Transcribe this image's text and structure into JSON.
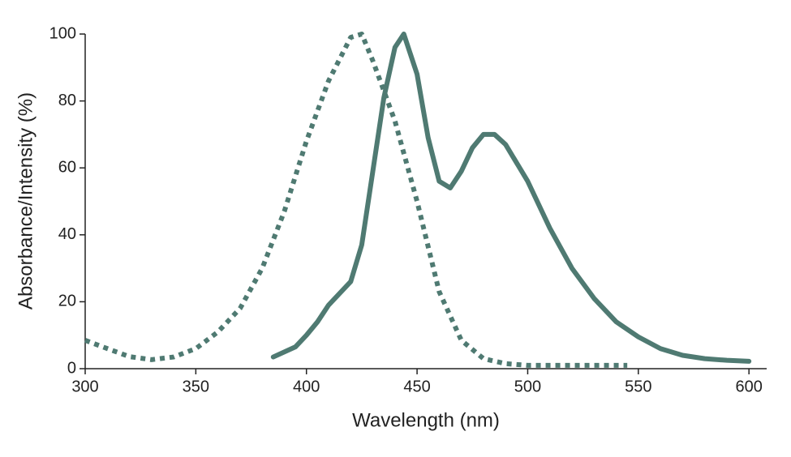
{
  "chart_data": {
    "type": "line",
    "xlabel": "Wavelength (nm)",
    "ylabel": "Absorbance/Intensity (%)",
    "xlim": [
      300,
      608
    ],
    "ylim": [
      0,
      100
    ],
    "xticks": [
      300,
      350,
      400,
      450,
      500,
      550,
      600
    ],
    "yticks": [
      0,
      20,
      40,
      60,
      80,
      100
    ],
    "grid": false,
    "series": [
      {
        "color": "#4f7a72",
        "style": "dotted",
        "x": [
          300,
          310,
          320,
          330,
          340,
          350,
          360,
          370,
          380,
          390,
          400,
          410,
          420,
          425,
          430,
          440,
          450,
          460,
          470,
          480,
          490,
          500,
          520,
          545
        ],
        "values": [
          8.5,
          6,
          3.6,
          2.7,
          3.5,
          6,
          11,
          18,
          30,
          47,
          68,
          86,
          99,
          100,
          92,
          74,
          50,
          23,
          8.5,
          3,
          1.5,
          1,
          1,
          1
        ]
      },
      {
        "color": "#4f7a72",
        "style": "solid",
        "x": [
          385,
          395,
          400,
          405,
          410,
          420,
          425,
          430,
          435,
          440,
          444,
          450,
          455,
          460,
          465,
          470,
          475,
          480,
          485,
          490,
          500,
          510,
          520,
          530,
          540,
          550,
          560,
          570,
          580,
          590,
          600
        ],
        "values": [
          3.5,
          6.5,
          10,
          14,
          19,
          26,
          37,
          59,
          81,
          96,
          100,
          88,
          69,
          56,
          54,
          59,
          66,
          70,
          70,
          67,
          56,
          42,
          30,
          21,
          14,
          9.5,
          6,
          4,
          3,
          2.5,
          2.2
        ]
      }
    ]
  }
}
